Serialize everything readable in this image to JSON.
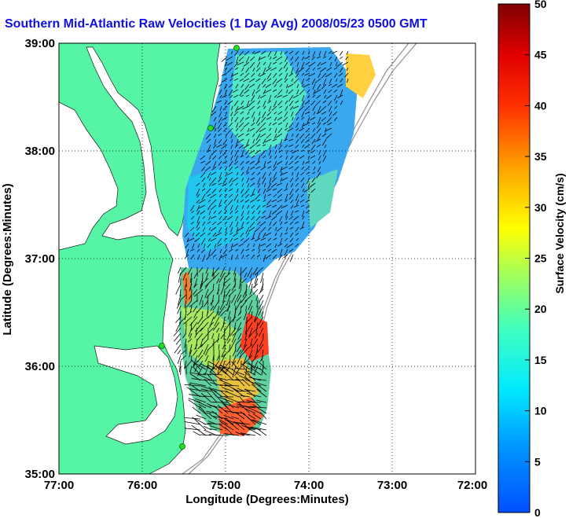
{
  "title": "Southern Mid-Atlantic Raw Velocities (1 Day Avg) 2008/05/23 0500 GMT",
  "x_axis": {
    "label": "Longitude (Degrees:Minutes)",
    "ticks": [
      "77:00",
      "76:00",
      "75:00",
      "74:00",
      "73:00",
      "72:00"
    ]
  },
  "y_axis": {
    "label": "Latitude (Degrees:Minutes)",
    "ticks": [
      "39:00",
      "38:00",
      "37:00",
      "36:00",
      "35:00"
    ]
  },
  "colorbar": {
    "label": "Surface Velocity (cm/s)",
    "ticks": [
      "50",
      "45",
      "40",
      "35",
      "30",
      "25",
      "20",
      "15",
      "10",
      "5",
      "0"
    ],
    "min": 0,
    "max": 50
  },
  "map": {
    "lon_range": [
      -77,
      -72
    ],
    "lat_range": [
      35,
      39
    ],
    "land_color": "#55f5a5",
    "grid": "dotted",
    "radar_sites": "green-dots"
  }
}
